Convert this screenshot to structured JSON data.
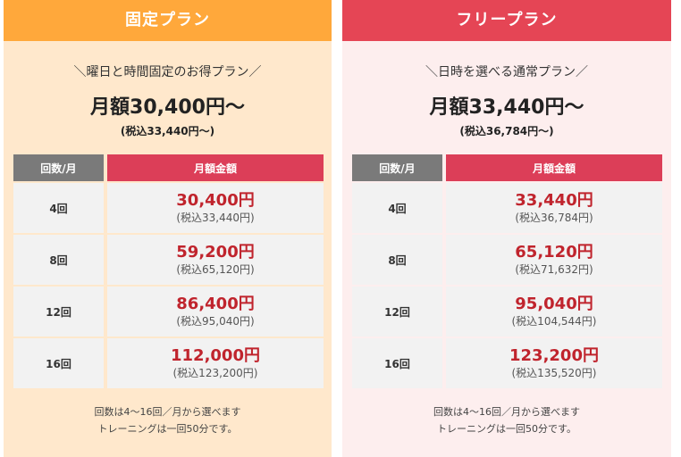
{
  "plans": [
    {
      "title": "固定プラン",
      "tagline": "＼曜日と時間固定のお得プラン／",
      "price_main": "月額30,400円～",
      "price_sub": "(税込33,440円～)",
      "table_headers": {
        "count": "回数/月",
        "price": "月額金額"
      },
      "rows": [
        {
          "count": "4回",
          "amount": "30,400円",
          "tax": "(税込33,440円)"
        },
        {
          "count": "8回",
          "amount": "59,200円",
          "tax": "(税込65,120円)"
        },
        {
          "count": "12回",
          "amount": "86,400円",
          "tax": "(税込95,040円)"
        },
        {
          "count": "16回",
          "amount": "112,000円",
          "tax": "(税込123,200円)"
        }
      ],
      "note_line1": "回数は4～16回／月から選べます",
      "note_line2": "トレーニングは一回50分です。"
    },
    {
      "title": "フリープラン",
      "tagline": "＼日時を選べる通常プラン／",
      "price_main": "月額33,440円～",
      "price_sub": "(税込36,784円～)",
      "table_headers": {
        "count": "回数/月",
        "price": "月額金額"
      },
      "rows": [
        {
          "count": "4回",
          "amount": "33,440円",
          "tax": "(税込36,784円)"
        },
        {
          "count": "8回",
          "amount": "65,120円",
          "tax": "(税込71,632円)"
        },
        {
          "count": "12回",
          "amount": "95,040円",
          "tax": "(税込104,544円)"
        },
        {
          "count": "16回",
          "amount": "123,200円",
          "tax": "(税込135,520円)"
        }
      ],
      "note_line1": "回数は4～16回／月から選べます",
      "note_line2": "トレーニングは一回50分です。"
    }
  ],
  "colors": {
    "fixed_header": "#ffa83b",
    "fixed_bg": "#ffe8cc",
    "free_header": "#e54555",
    "free_bg": "#fdeeee",
    "count_header": "#7a7a7a",
    "price_header": "#dc3e58",
    "price_text": "#c0242d"
  }
}
